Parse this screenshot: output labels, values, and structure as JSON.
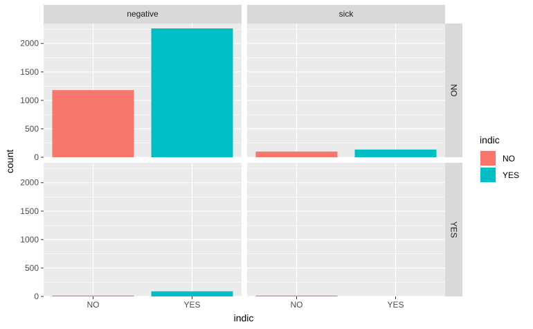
{
  "chart_data": {
    "type": "bar",
    "xlabel": "indic",
    "ylabel": "count",
    "ylim": [
      0,
      2350
    ],
    "y_ticks": [
      0,
      500,
      1000,
      1500,
      2000
    ],
    "categories": [
      "NO",
      "YES"
    ],
    "facet_columns": [
      "negative",
      "sick"
    ],
    "facet_rows": [
      "NO",
      "YES"
    ],
    "grid": true,
    "legend": {
      "title": "indic",
      "position": "right",
      "entries": [
        {
          "label": "NO",
          "color": "#F8766D"
        },
        {
          "label": "YES",
          "color": "#00BFC4"
        }
      ]
    },
    "panels": [
      {
        "col": "negative",
        "row": "NO",
        "values": {
          "NO": 1180,
          "YES": 2265
        }
      },
      {
        "col": "sick",
        "row": "NO",
        "values": {
          "NO": 100,
          "YES": 135
        }
      },
      {
        "col": "negative",
        "row": "YES",
        "values": {
          "NO": 15,
          "YES": 90
        }
      },
      {
        "col": "sick",
        "row": "YES",
        "values": {
          "NO": 15
        }
      }
    ]
  },
  "colors": {
    "panel_bg": "#EBEBEB",
    "strip_bg": "#D9D9D9",
    "grid_major": "#FFFFFF",
    "NO": "#F8766D",
    "YES": "#00BFC4"
  }
}
